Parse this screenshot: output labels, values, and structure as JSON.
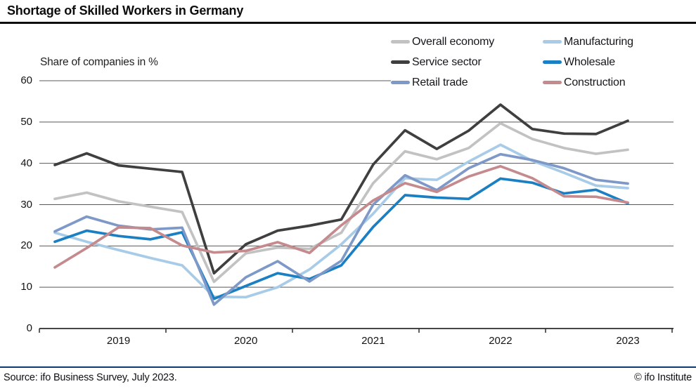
{
  "header": {
    "title": "Shortage of Skilled Workers in Germany"
  },
  "footer": {
    "source": "Source: ifo Business Survey, July 2023.",
    "credit": "© ifo Institute"
  },
  "chart_data": {
    "type": "line",
    "title": "Shortage of Skilled Workers in Germany",
    "ylabel": "Share of companies in %",
    "xlabel": "",
    "ylim": [
      0,
      60
    ],
    "yticks": [
      0,
      10,
      20,
      30,
      40,
      50,
      60
    ],
    "grid": "horizontal",
    "legend_position": "top-right",
    "x_frequency": "quarterly",
    "x": [
      "2019-Q1",
      "2019-Q2",
      "2019-Q3",
      "2019-Q4",
      "2020-Q1",
      "2020-Q2",
      "2020-Q3",
      "2020-Q4",
      "2021-Q1",
      "2021-Q2",
      "2021-Q3",
      "2021-Q4",
      "2022-Q1",
      "2022-Q2",
      "2022-Q3",
      "2022-Q4",
      "2023-Q1",
      "2023-Q2",
      "2023-Q3"
    ],
    "year_labels": [
      "2019",
      "2020",
      "2021",
      "2022",
      "2023"
    ],
    "series": [
      {
        "name": "Overall economy",
        "color": "#c2c2c2",
        "values": [
          31.4,
          32.9,
          30.8,
          29.5,
          28.2,
          11.3,
          18.2,
          19.6,
          19.3,
          23.2,
          35.2,
          42.9,
          41.0,
          43.7,
          49.7,
          45.9,
          43.7,
          42.3,
          43.3
        ]
      },
      {
        "name": "Manufacturing",
        "color": "#a8cbe8",
        "values": [
          23.2,
          21.0,
          19.0,
          17.1,
          15.3,
          7.7,
          7.6,
          10.0,
          14.3,
          20.4,
          27.8,
          36.4,
          36.0,
          40.4,
          44.5,
          40.6,
          37.7,
          34.6,
          34.0
        ]
      },
      {
        "name": "Service sector",
        "color": "#3f3f3f",
        "values": [
          39.6,
          42.4,
          39.5,
          38.7,
          37.9,
          13.4,
          20.4,
          23.7,
          24.9,
          26.4,
          39.7,
          48.0,
          43.5,
          47.9,
          54.2,
          48.3,
          47.2,
          47.1,
          50.3
        ]
      },
      {
        "name": "Wholesale",
        "color": "#1b7fc3",
        "values": [
          21.0,
          23.7,
          22.4,
          21.6,
          23.3,
          7.2,
          10.3,
          13.4,
          12.0,
          15.3,
          24.6,
          32.3,
          31.7,
          31.4,
          36.3,
          35.3,
          32.7,
          33.6,
          30.3
        ]
      },
      {
        "name": "Retail trade",
        "color": "#7e99c8",
        "values": [
          23.5,
          27.1,
          24.9,
          24.0,
          24.4,
          5.8,
          12.4,
          16.3,
          11.4,
          16.4,
          30.0,
          37.1,
          33.5,
          38.8,
          42.2,
          40.8,
          38.8,
          36.0,
          35.1
        ]
      },
      {
        "name": "Construction",
        "color": "#c58a8d",
        "values": [
          14.8,
          19.5,
          24.5,
          24.3,
          20.1,
          18.4,
          18.8,
          20.9,
          18.3,
          25.0,
          31.0,
          35.2,
          33.1,
          36.8,
          39.3,
          36.4,
          32.0,
          31.9,
          30.5
        ]
      }
    ]
  }
}
